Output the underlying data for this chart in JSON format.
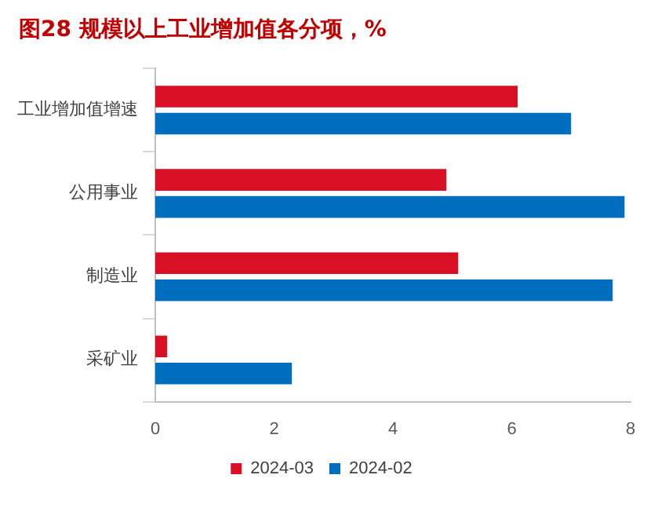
{
  "chart_data": {
    "type": "bar",
    "orientation": "horizontal",
    "title": "图28  规模以上工业增加值各分项，%",
    "categories": [
      "工业增加值增速",
      "公用事业",
      "制造业",
      "采矿业"
    ],
    "series": [
      {
        "name": "2024-03",
        "color": "#d90f26",
        "values": [
          6.1,
          4.9,
          5.1,
          0.2
        ]
      },
      {
        "name": "2024-02",
        "color": "#006ebf",
        "values": [
          7.0,
          7.9,
          7.7,
          2.3
        ]
      }
    ],
    "xlim": [
      0,
      8
    ],
    "xticks": [
      0,
      2,
      4,
      6,
      8
    ],
    "grid": false,
    "legend": "bottom"
  }
}
